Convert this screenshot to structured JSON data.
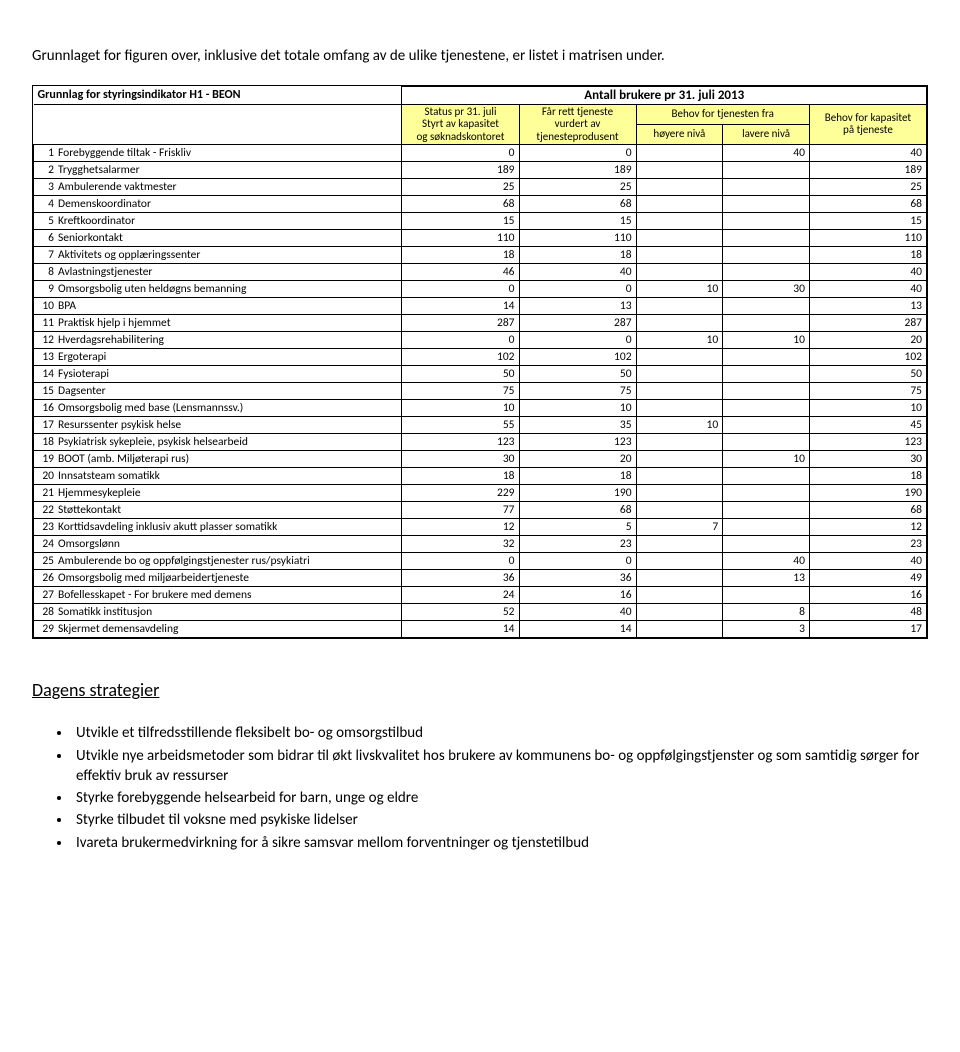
{
  "intro": "Grunnlaget for figuren over, inklusive det totale omfang av de ulike tjenestene, er listet i matrisen under.",
  "table": {
    "title_left": "Grunnlag for styringsindikator H1 - BEON",
    "title_center": "Antall brukere pr 31. juli 2013",
    "header": {
      "col1": "Status pr 31. juli\nStyrt av kapasitet\nog søknadskontoret",
      "col2": "Får rett tjeneste\nvurdert av\ntjenesteprodusent",
      "col34_top": "Behov for tjenesten fra",
      "col3": "høyere nivå",
      "col4": "lavere nivå",
      "col5": "Behov for kapasitet\npå tjeneste"
    },
    "rows": [
      {
        "n": "1",
        "label": "Forebyggende tiltak - Friskliv",
        "c1": "0",
        "c2": "0",
        "c3": "",
        "c4": "40",
        "c5": "40"
      },
      {
        "n": "2",
        "label": "Trygghetsalarmer",
        "c1": "189",
        "c2": "189",
        "c3": "",
        "c4": "",
        "c5": "189"
      },
      {
        "n": "3",
        "label": "Ambulerende vaktmester",
        "c1": "25",
        "c2": "25",
        "c3": "",
        "c4": "",
        "c5": "25"
      },
      {
        "n": "4",
        "label": "Demenskoordinator",
        "c1": "68",
        "c2": "68",
        "c3": "",
        "c4": "",
        "c5": "68"
      },
      {
        "n": "5",
        "label": "Kreftkoordinator",
        "c1": "15",
        "c2": "15",
        "c3": "",
        "c4": "",
        "c5": "15"
      },
      {
        "n": "6",
        "label": "Seniorkontakt",
        "c1": "110",
        "c2": "110",
        "c3": "",
        "c4": "",
        "c5": "110"
      },
      {
        "n": "7",
        "label": "Aktivitets og opplæringssenter",
        "c1": "18",
        "c2": "18",
        "c3": "",
        "c4": "",
        "c5": "18"
      },
      {
        "n": "8",
        "label": "Avlastningstjenester",
        "c1": "46",
        "c2": "40",
        "c3": "",
        "c4": "",
        "c5": "40"
      },
      {
        "n": "9",
        "label": "Omsorgsbolig uten heldøgns bemanning",
        "c1": "0",
        "c2": "0",
        "c3": "10",
        "c4": "30",
        "c5": "40"
      },
      {
        "n": "10",
        "label": "BPA",
        "c1": "14",
        "c2": "13",
        "c3": "",
        "c4": "",
        "c5": "13"
      },
      {
        "n": "11",
        "label": "Praktisk hjelp i hjemmet",
        "c1": "287",
        "c2": "287",
        "c3": "",
        "c4": "",
        "c5": "287"
      },
      {
        "n": "12",
        "label": "Hverdagsrehabilitering",
        "c1": "0",
        "c2": "0",
        "c3": "10",
        "c4": "10",
        "c5": "20"
      },
      {
        "n": "13",
        "label": "Ergoterapi",
        "c1": "102",
        "c2": "102",
        "c3": "",
        "c4": "",
        "c5": "102"
      },
      {
        "n": "14",
        "label": "Fysioterapi",
        "c1": "50",
        "c2": "50",
        "c3": "",
        "c4": "",
        "c5": "50"
      },
      {
        "n": "15",
        "label": "Dagsenter",
        "c1": "75",
        "c2": "75",
        "c3": "",
        "c4": "",
        "c5": "75"
      },
      {
        "n": "16",
        "label": "Omsorgsbolig med base (Lensmannssv.)",
        "c1": "10",
        "c2": "10",
        "c3": "",
        "c4": "",
        "c5": "10"
      },
      {
        "n": "17",
        "label": "Resurssenter psykisk helse",
        "c1": "55",
        "c2": "35",
        "c3": "10",
        "c4": "",
        "c5": "45"
      },
      {
        "n": "18",
        "label": "Psykiatrisk sykepleie, psykisk helsearbeid",
        "c1": "123",
        "c2": "123",
        "c3": "",
        "c4": "",
        "c5": "123"
      },
      {
        "n": "19",
        "label": "BOOT (amb. Miljøterapi rus)",
        "c1": "30",
        "c2": "20",
        "c3": "",
        "c4": "10",
        "c5": "30"
      },
      {
        "n": "20",
        "label": "Innsatsteam somatikk",
        "c1": "18",
        "c2": "18",
        "c3": "",
        "c4": "",
        "c5": "18"
      },
      {
        "n": "21",
        "label": "Hjemmesykepleie",
        "c1": "229",
        "c2": "190",
        "c3": "",
        "c4": "",
        "c5": "190"
      },
      {
        "n": "22",
        "label": "Støttekontakt",
        "c1": "77",
        "c2": "68",
        "c3": "",
        "c4": "",
        "c5": "68"
      },
      {
        "n": "23",
        "label": "Korttidsavdeling inklusiv akutt plasser somatikk",
        "c1": "12",
        "c2": "5",
        "c3": "7",
        "c4": "",
        "c5": "12"
      },
      {
        "n": "24",
        "label": "Omsorgslønn",
        "c1": "32",
        "c2": "23",
        "c3": "",
        "c4": "",
        "c5": "23"
      },
      {
        "n": "25",
        "label": "Ambulerende bo og oppfølgingstjenester rus/psykiatri",
        "c1": "0",
        "c2": "0",
        "c3": "",
        "c4": "40",
        "c5": "40"
      },
      {
        "n": "26",
        "label": "Omsorgsbolig med miljøarbeidertjeneste",
        "c1": "36",
        "c2": "36",
        "c3": "",
        "c4": "13",
        "c5": "49"
      },
      {
        "n": "27",
        "label": "Bofellesskapet - For brukere med demens",
        "c1": "24",
        "c2": "16",
        "c3": "",
        "c4": "",
        "c5": "16"
      },
      {
        "n": "28",
        "label": "Somatikk institusjon",
        "c1": "52",
        "c2": "40",
        "c3": "",
        "c4": "8",
        "c5": "48"
      },
      {
        "n": "29",
        "label": "Skjermet demensavdeling",
        "c1": "14",
        "c2": "14",
        "c3": "",
        "c4": "3",
        "c5": "17"
      }
    ]
  },
  "strategies": {
    "title": "Dagens strategier",
    "items": [
      "Utvikle et tilfredsstillende fleksibelt bo- og omsorgstilbud",
      "Utvikle nye arbeidsmetoder som bidrar til økt livskvalitet hos brukere av kommunens bo- og oppfølgingstjenster og som samtidig sørger for effektiv bruk av ressurser",
      "Styrke forebyggende helsearbeid for barn, unge og eldre",
      "Styrke tilbudet til voksne med psykiske lidelser",
      "Ivareta brukermedvirkning for å sikre samsvar mellom forventninger og tjenstetilbud"
    ]
  }
}
